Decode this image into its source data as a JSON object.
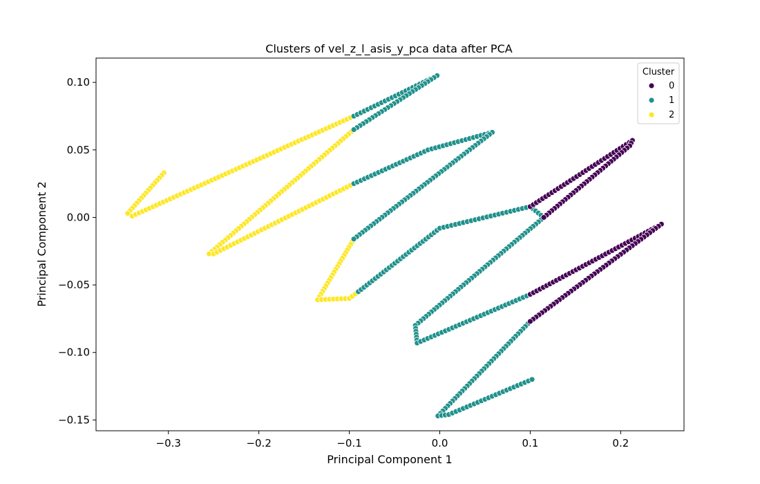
{
  "chart_data": {
    "type": "scatter",
    "title": "Clusters of vel_z_l_asis_y_pca data after PCA",
    "xlabel": "Principal Component 1",
    "ylabel": "Principal Component 2",
    "xlim": [
      -0.38,
      0.27
    ],
    "ylim": [
      -0.158,
      0.118
    ],
    "x_ticks": [
      -0.3,
      -0.2,
      -0.1,
      0.0,
      0.1,
      0.2
    ],
    "y_ticks": [
      -0.15,
      -0.1,
      -0.05,
      0.0,
      0.05,
      0.1
    ],
    "x_tick_labels": [
      "−0.3",
      "−0.2",
      "−0.1",
      "0.0",
      "0.1",
      "0.2"
    ],
    "y_tick_labels": [
      "−0.15",
      "−0.10",
      "−0.05",
      "0.00",
      "0.05",
      "0.10"
    ],
    "grid": false,
    "legend": {
      "title": "Cluster",
      "placement": "top-right",
      "entries": [
        "0",
        "1",
        "2"
      ]
    },
    "colors": {
      "0": "#440154",
      "1": "#21918c",
      "2": "#fde725"
    },
    "path_vertices": [
      [
        -0.305,
        0.033
      ],
      [
        -0.345,
        0.003
      ],
      [
        -0.34,
        0.001
      ],
      [
        -0.095,
        0.075
      ],
      [
        -0.003,
        0.105
      ],
      [
        -0.095,
        0.065
      ],
      [
        -0.255,
        -0.027
      ],
      [
        -0.25,
        -0.027
      ],
      [
        -0.013,
        0.05
      ],
      [
        0.058,
        0.063
      ],
      [
        -0.095,
        0.025
      ],
      [
        -0.135,
        -0.061
      ],
      [
        -0.1,
        -0.06
      ],
      [
        0.0,
        -0.008
      ],
      [
        0.1,
        0.008
      ],
      [
        0.213,
        0.057
      ],
      [
        0.21,
        0.053
      ],
      [
        -0.027,
        -0.08
      ],
      [
        -0.025,
        -0.093
      ],
      [
        0.1,
        -0.057
      ],
      [
        0.245,
        -0.005
      ],
      [
        0.1,
        -0.077
      ],
      [
        -0.002,
        -0.147
      ],
      [
        0.01,
        -0.146
      ],
      [
        0.102,
        -0.12
      ]
    ],
    "series": [
      {
        "name": "2",
        "cluster": 2,
        "segments": [
          [
            [
              -0.305,
              0.033
            ],
            [
              -0.345,
              0.003
            ],
            [
              -0.34,
              0.001
            ],
            [
              -0.095,
              0.075
            ]
          ],
          [
            [
              -0.095,
              0.065
            ],
            [
              -0.255,
              -0.027
            ],
            [
              -0.25,
              -0.027
            ],
            [
              -0.095,
              0.025
            ]
          ],
          [
            [
              -0.095,
              -0.016
            ],
            [
              -0.135,
              -0.061
            ],
            [
              -0.1,
              -0.06
            ],
            [
              -0.09,
              -0.055
            ]
          ]
        ]
      },
      {
        "name": "1",
        "cluster": 1,
        "segments": [
          [
            [
              -0.095,
              0.075
            ],
            [
              -0.003,
              0.105
            ],
            [
              -0.095,
              0.065
            ]
          ],
          [
            [
              -0.095,
              0.025
            ],
            [
              -0.013,
              0.05
            ],
            [
              0.058,
              0.063
            ],
            [
              -0.095,
              -0.016
            ]
          ],
          [
            [
              -0.09,
              -0.055
            ],
            [
              0.0,
              -0.008
            ],
            [
              0.1,
              0.008
            ]
          ],
          [
            [
              0.1,
              0.008
            ],
            [
              0.115,
              0.0
            ]
          ],
          [
            [
              0.115,
              0.0
            ],
            [
              -0.027,
              -0.08
            ],
            [
              -0.025,
              -0.093
            ],
            [
              0.1,
              -0.057
            ]
          ],
          [
            [
              0.1,
              -0.077
            ],
            [
              -0.002,
              -0.147
            ],
            [
              0.01,
              -0.146
            ],
            [
              0.102,
              -0.12
            ]
          ]
        ]
      },
      {
        "name": "0",
        "cluster": 0,
        "segments": [
          [
            [
              0.1,
              0.008
            ],
            [
              0.213,
              0.057
            ],
            [
              0.21,
              0.053
            ],
            [
              0.115,
              0.0
            ]
          ],
          [
            [
              0.1,
              -0.057
            ],
            [
              0.245,
              -0.005
            ],
            [
              0.1,
              -0.077
            ]
          ]
        ]
      }
    ]
  }
}
